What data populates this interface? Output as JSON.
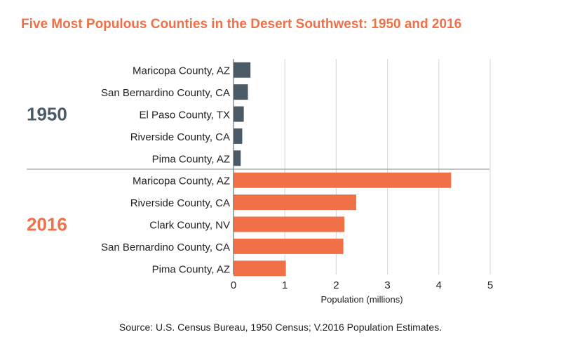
{
  "title": "Five Most Populous Counties in the Desert Southwest: 1950 and 2016",
  "source": "Source: U.S. Census Bureau, 1950 Census; V.2016 Population Estimates.",
  "colors": {
    "title": "#f07048",
    "y1950": "#4a5a66",
    "y2016": "#f07048"
  },
  "chart_data": {
    "type": "bar",
    "orientation": "horizontal",
    "title": "Five Most Populous Counties in the Desert Southwest: 1950 and 2016",
    "xlabel": "Population (millions)",
    "xlim": [
      0,
      5
    ],
    "xticks": [
      "0",
      "1",
      "2",
      "3",
      "4",
      "5"
    ],
    "grid": true,
    "groups": [
      {
        "name": "1950",
        "color": "#4a5a66",
        "categories": [
          "Maricopa County, AZ",
          "San Bernardino County, CA",
          "El Paso County, TX",
          "Riverside County, CA",
          "Pima County, AZ"
        ],
        "values": [
          0.33,
          0.28,
          0.2,
          0.17,
          0.14
        ]
      },
      {
        "name": "2016",
        "color": "#f07048",
        "categories": [
          "Maricopa County, AZ",
          "Riverside County, CA",
          "Clark County, NV",
          "San Bernardino County, CA",
          "Pima County, AZ"
        ],
        "values": [
          4.24,
          2.39,
          2.16,
          2.14,
          1.02
        ]
      }
    ]
  }
}
